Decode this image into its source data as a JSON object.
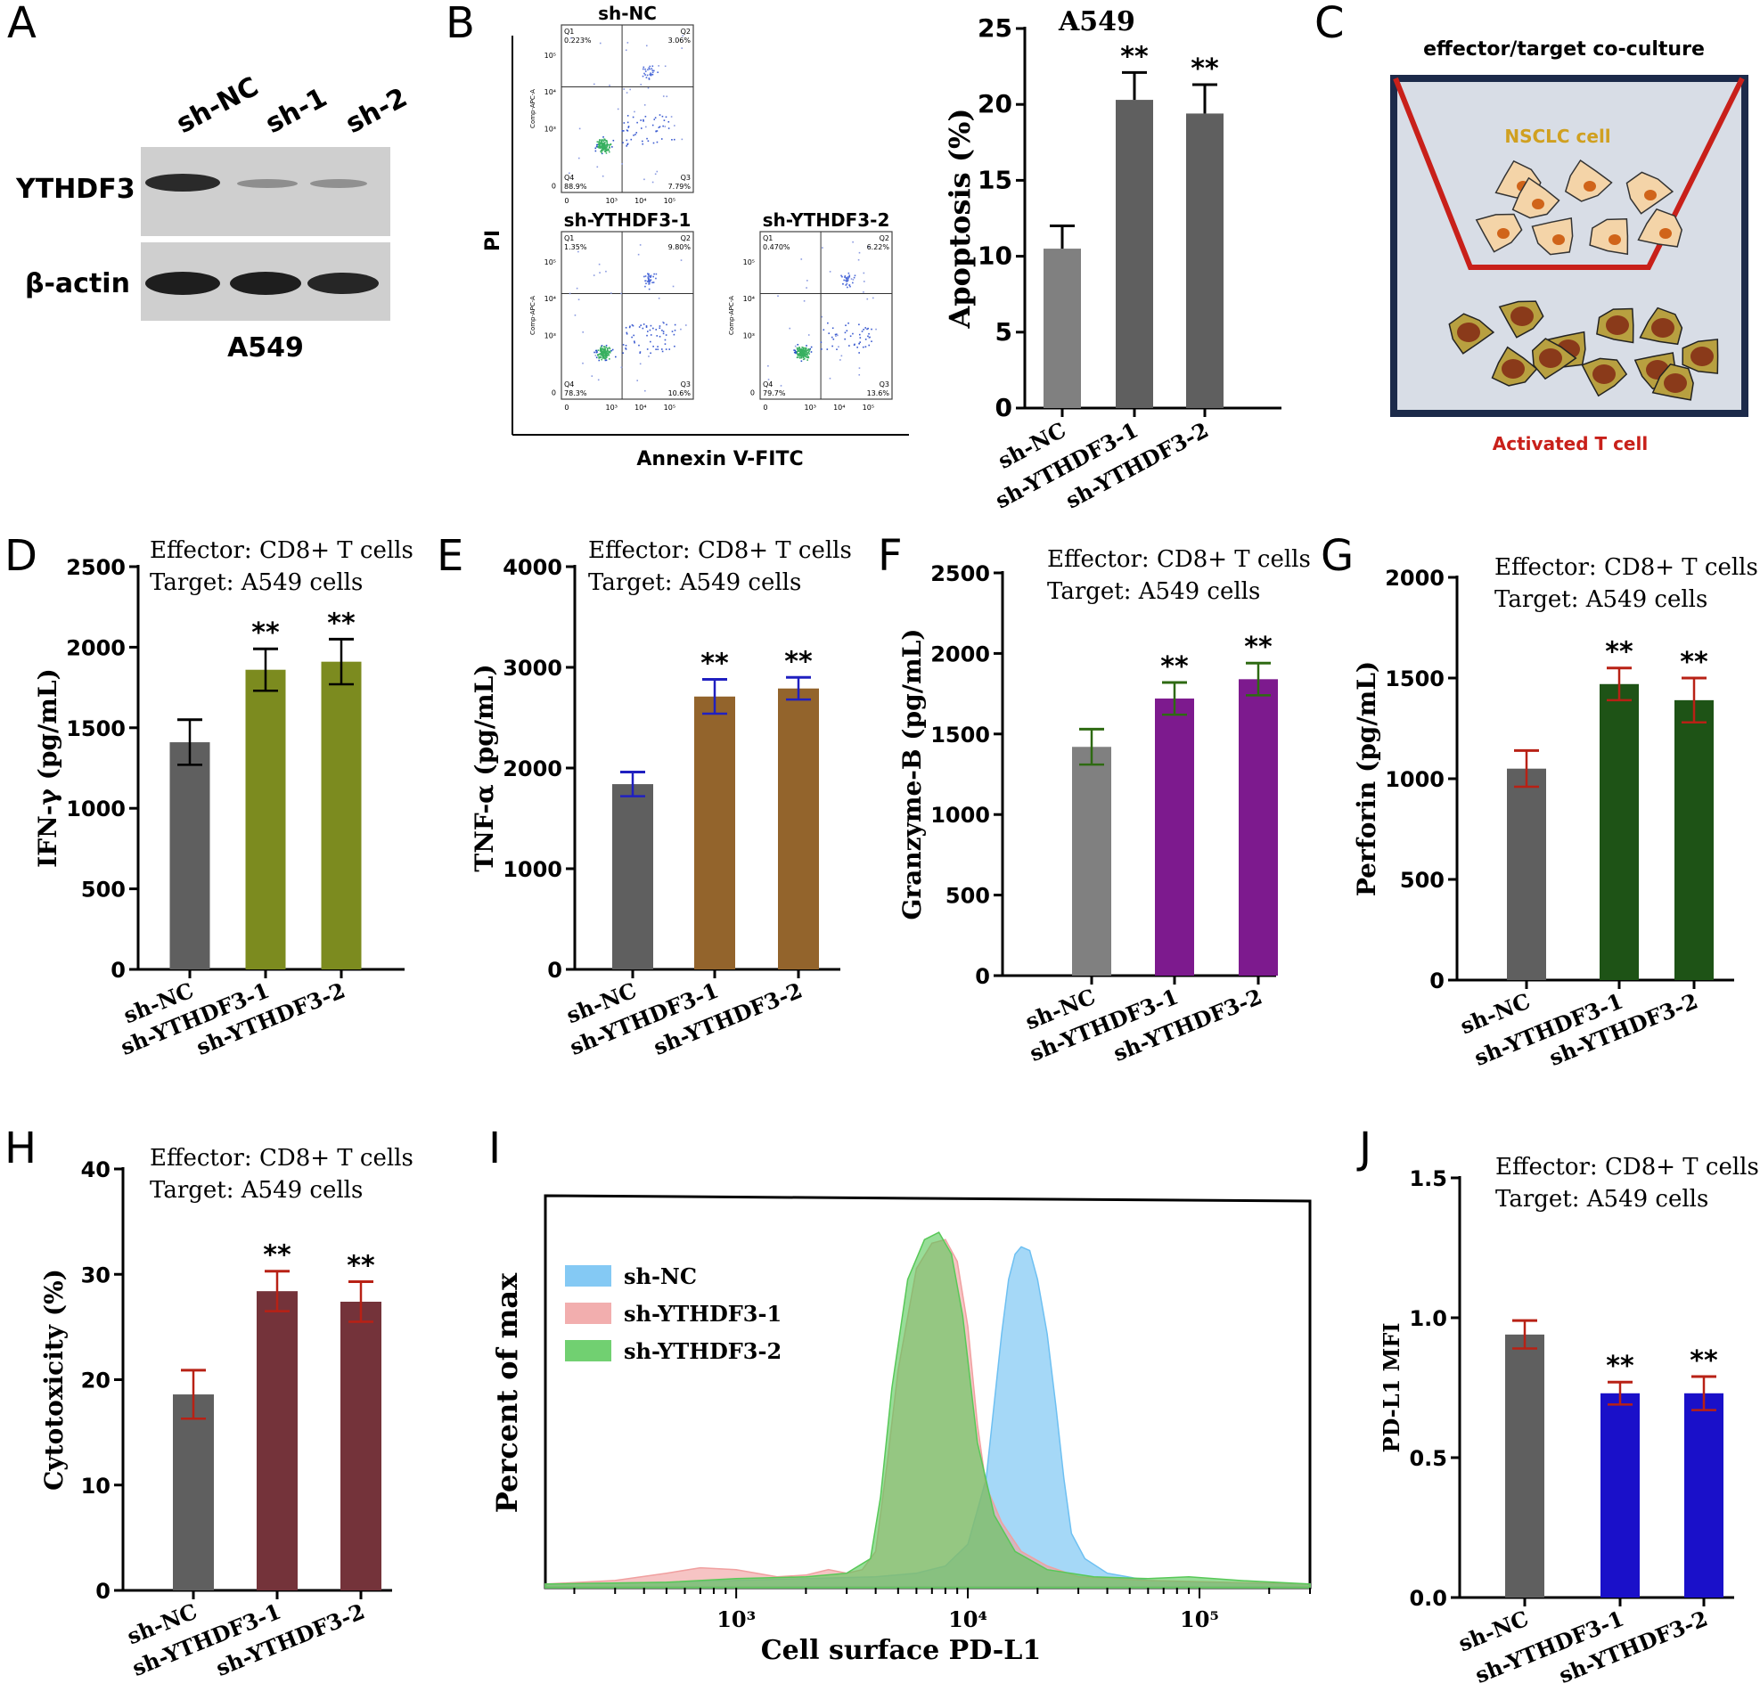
{
  "panel_letters": [
    "A",
    "B",
    "C",
    "D",
    "E",
    "F",
    "G",
    "H",
    "I",
    "J"
  ],
  "colors": {
    "gray_dark": "#5f5f5f",
    "gray_light": "#808080",
    "olive": "#7c8b1f",
    "brown": "#93642c",
    "purple": "#7d1a8e",
    "dark_green": "#1e5316",
    "maroon": "#74333a",
    "blue": "#1a10c9",
    "err_black": "#000000",
    "err_blue": "#2020c0",
    "err_green": "#2e6a12",
    "err_red": "#b82115",
    "hist_blue": "#6ec0f2",
    "hist_red": "#f0a0a0",
    "hist_green": "#58c858",
    "transwell_red": "#c8201a",
    "transwell_frame": "#1c2a4a",
    "medium": "#d8dde6",
    "nsclc_fill": "#f4d4a8",
    "nsclc_nucleus": "#d0641a",
    "tcell_fill": "#b8a040",
    "tcell_nucleus": "#8a3a1a"
  },
  "panelA": {
    "lanes": [
      "sh-NC",
      "sh-1",
      "sh-2"
    ],
    "proteins": [
      "YTHDF3",
      "β-actin"
    ],
    "cell_line": "A549"
  },
  "panelB": {
    "plots": [
      {
        "title": "sh-NC",
        "q1": "0.223%",
        "q2": "3.06%",
        "q4": "88.9%",
        "q3": "7.79%"
      },
      {
        "title": "sh-YTHDF3-1",
        "q1": "1.35%",
        "q2": "9.80%",
        "q4": "78.3%",
        "q3": "10.6%"
      },
      {
        "title": "sh-YTHDF3-2",
        "q1": "0.470%",
        "q2": "6.22%",
        "q4": "79.7%",
        "q3": "13.6%"
      }
    ],
    "quadrant_names": [
      "Q1",
      "Q2",
      "Q4",
      "Q3"
    ],
    "inner_ylabel": "Comp-APC-A",
    "ticks": [
      "0",
      "10³",
      "10⁴",
      "10⁵"
    ],
    "xlabel": "Annexin V-FITC",
    "ylabel": "PI"
  },
  "panelC": {
    "title": "effector/target co-culture",
    "upper_label": "NSCLC cell",
    "lower_label": "Activated T cell"
  },
  "annotation": {
    "line1": "Effector: CD8+ T cells",
    "line2": "Target: A549 cells"
  },
  "chart_data": [
    {
      "id": "B",
      "type": "bar",
      "title": "A549",
      "ylabel": "Apoptosis (%)",
      "categories": [
        "sh-NC",
        "sh-YTHDF3-1",
        "sh-YTHDF3-2"
      ],
      "values": [
        10.5,
        20.3,
        19.4
      ],
      "errors": [
        1.5,
        1.8,
        1.9
      ],
      "ylim": [
        0,
        25
      ],
      "yticks": [
        0,
        5,
        10,
        15,
        20,
        25
      ],
      "significance": [
        "",
        "**",
        "**"
      ],
      "bar_colors": [
        "gray_light",
        "gray_dark",
        "gray_dark"
      ],
      "err_color": "err_black"
    },
    {
      "id": "D",
      "type": "bar",
      "ylabel": "IFN-γ (pg/mL)",
      "categories": [
        "sh-NC",
        "sh-YTHDF3-1",
        "sh-YTHDF3-2"
      ],
      "values": [
        1410,
        1860,
        1910
      ],
      "errors": [
        140,
        130,
        140
      ],
      "ylim": [
        0,
        2500
      ],
      "yticks": [
        0,
        500,
        1000,
        1500,
        2000,
        2500
      ],
      "significance": [
        "",
        "**",
        "**"
      ],
      "bar_colors": [
        "gray_dark",
        "olive",
        "olive"
      ],
      "err_color": "err_black"
    },
    {
      "id": "E",
      "type": "bar",
      "ylabel": "TNF-α (pg/mL)",
      "categories": [
        "sh-NC",
        "sh-YTHDF3-1",
        "sh-YTHDF3-2"
      ],
      "values": [
        1840,
        2710,
        2790
      ],
      "errors": [
        120,
        170,
        110
      ],
      "ylim": [
        0,
        4000
      ],
      "yticks": [
        0,
        1000,
        2000,
        3000,
        4000
      ],
      "significance": [
        "",
        "**",
        "**"
      ],
      "bar_colors": [
        "gray_dark",
        "brown",
        "brown"
      ],
      "err_color": "err_blue"
    },
    {
      "id": "F",
      "type": "bar",
      "ylabel": "Granzyme-B (pg/mL)",
      "categories": [
        "sh-NC",
        "sh-YTHDF3-1",
        "sh-YTHDF3-2"
      ],
      "values": [
        1420,
        1720,
        1840
      ],
      "errors": [
        110,
        100,
        100
      ],
      "ylim": [
        0,
        2500
      ],
      "yticks": [
        0,
        500,
        1000,
        1500,
        2000,
        2500
      ],
      "significance": [
        "",
        "**",
        "**"
      ],
      "bar_colors": [
        "gray_light",
        "purple",
        "purple"
      ],
      "err_color": "err_green"
    },
    {
      "id": "G",
      "type": "bar",
      "ylabel": "Perforin (pg/mL)",
      "categories": [
        "sh-NC",
        "sh-YTHDF3-1",
        "sh-YTHDF3-2"
      ],
      "values": [
        1050,
        1470,
        1390
      ],
      "errors": [
        90,
        80,
        110
      ],
      "ylim": [
        0,
        2000
      ],
      "yticks": [
        0,
        500,
        1000,
        1500,
        2000
      ],
      "significance": [
        "",
        "**",
        "**"
      ],
      "bar_colors": [
        "gray_dark",
        "dark_green",
        "dark_green"
      ],
      "err_color": "err_red"
    },
    {
      "id": "H",
      "type": "bar",
      "ylabel": "Cytotoxicity (%)",
      "categories": [
        "sh-NC",
        "sh-YTHDF3-1",
        "sh-YTHDF3-2"
      ],
      "values": [
        18.6,
        28.4,
        27.4
      ],
      "errors": [
        2.3,
        1.9,
        1.9
      ],
      "ylim": [
        0,
        40
      ],
      "yticks": [
        0,
        10,
        20,
        30,
        40
      ],
      "significance": [
        "",
        "**",
        "**"
      ],
      "bar_colors": [
        "gray_dark",
        "maroon",
        "maroon"
      ],
      "err_color": "err_red"
    },
    {
      "id": "J",
      "type": "bar",
      "ylabel": "PD-L1 MFI",
      "categories": [
        "sh-NC",
        "sh-YTHDF3-1",
        "sh-YTHDF3-2"
      ],
      "values": [
        0.94,
        0.73,
        0.73
      ],
      "errors": [
        0.05,
        0.04,
        0.06
      ],
      "ylim": [
        0,
        1.5
      ],
      "yticks": [
        "0.0",
        "0.5",
        "1.0",
        "1.5"
      ],
      "significance": [
        "",
        "**",
        "**"
      ],
      "bar_colors": [
        "gray_dark",
        "blue",
        "blue"
      ],
      "err_color": "err_red"
    },
    {
      "id": "I",
      "type": "area",
      "xlabel": "Cell surface PD-L1",
      "ylabel": "Percent of max",
      "x_scale": "log",
      "xlim": [
        150,
        300000
      ],
      "xticks": [
        "10³",
        "10⁴",
        "10⁵"
      ],
      "ylim": [
        0,
        100
      ],
      "series": [
        {
          "name": "sh-NC",
          "color": "hist_blue",
          "points": [
            [
              150,
              1
            ],
            [
              500,
              1.5
            ],
            [
              1000,
              2
            ],
            [
              2000,
              2.5
            ],
            [
              4000,
              3
            ],
            [
              6000,
              4
            ],
            [
              8000,
              6
            ],
            [
              10000,
              12
            ],
            [
              12000,
              30
            ],
            [
              14000,
              70
            ],
            [
              15000,
              85
            ],
            [
              16000,
              92
            ],
            [
              17000,
              94
            ],
            [
              18500,
              93
            ],
            [
              20000,
              85
            ],
            [
              22000,
              70
            ],
            [
              24000,
              50
            ],
            [
              26000,
              30
            ],
            [
              28000,
              15
            ],
            [
              32000,
              8
            ],
            [
              40000,
              4
            ],
            [
              60000,
              2
            ],
            [
              100000,
              1.5
            ],
            [
              300000,
              1
            ]
          ]
        },
        {
          "name": "sh-YTHDF3-1",
          "color": "hist_red",
          "points": [
            [
              150,
              1
            ],
            [
              300,
              2
            ],
            [
              500,
              4
            ],
            [
              700,
              5.5
            ],
            [
              1000,
              5
            ],
            [
              1500,
              3
            ],
            [
              2000,
              3.5
            ],
            [
              2500,
              5
            ],
            [
              3000,
              4
            ],
            [
              3500,
              5
            ],
            [
              4000,
              10
            ],
            [
              4500,
              35
            ],
            [
              5000,
              60
            ],
            [
              6000,
              88
            ],
            [
              7000,
              95
            ],
            [
              8000,
              96
            ],
            [
              9000,
              90
            ],
            [
              10000,
              72
            ],
            [
              11000,
              45
            ],
            [
              12000,
              28
            ],
            [
              14000,
              18
            ],
            [
              17000,
              10
            ],
            [
              22000,
              6
            ],
            [
              30000,
              3
            ],
            [
              60000,
              2
            ],
            [
              300000,
              1
            ]
          ]
        },
        {
          "name": "sh-YTHDF3-2",
          "color": "hist_green",
          "points": [
            [
              150,
              1
            ],
            [
              500,
              1.5
            ],
            [
              1000,
              2.5
            ],
            [
              2000,
              3
            ],
            [
              3000,
              4
            ],
            [
              3800,
              8
            ],
            [
              4200,
              25
            ],
            [
              4700,
              55
            ],
            [
              5500,
              85
            ],
            [
              6500,
              96
            ],
            [
              7500,
              98
            ],
            [
              8500,
              92
            ],
            [
              9500,
              75
            ],
            [
              11000,
              40
            ],
            [
              13000,
              20
            ],
            [
              16000,
              10
            ],
            [
              22000,
              5
            ],
            [
              35000,
              3
            ],
            [
              60000,
              2.5
            ],
            [
              90000,
              3
            ],
            [
              150000,
              2
            ],
            [
              300000,
              1
            ]
          ]
        }
      ]
    }
  ]
}
